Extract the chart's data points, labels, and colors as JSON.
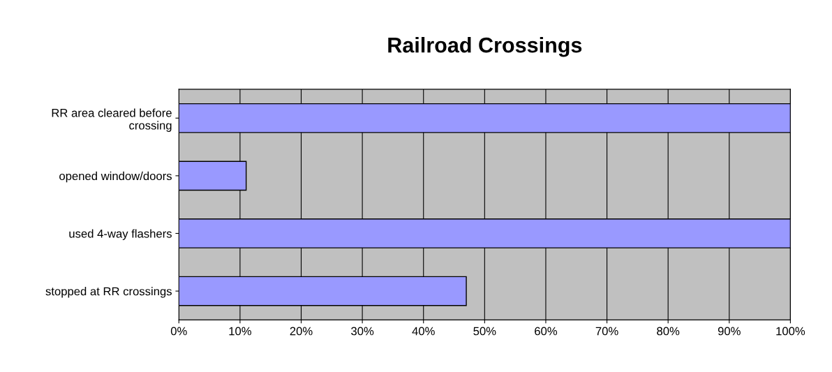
{
  "chart_data": {
    "type": "bar",
    "orientation": "horizontal",
    "title": "Railroad Crossings",
    "categories": [
      "RR area cleared before\ncrossing",
      "opened window/doors",
      "used 4-way flashers",
      "stopped at RR crossings"
    ],
    "series": [
      {
        "color": "#9999ff",
        "values": [
          100,
          11,
          100,
          47
        ]
      }
    ],
    "xlim": [
      0,
      100
    ],
    "xticks": [
      {
        "value": 0,
        "label": "0%"
      },
      {
        "value": 10,
        "label": "10%"
      },
      {
        "value": 20,
        "label": "20%"
      },
      {
        "value": 30,
        "label": "30%"
      },
      {
        "value": 40,
        "label": "40%"
      },
      {
        "value": 50,
        "label": "50%"
      },
      {
        "value": 60,
        "label": "60%"
      },
      {
        "value": 70,
        "label": "70%"
      },
      {
        "value": 80,
        "label": "80%"
      },
      {
        "value": 90,
        "label": "90%"
      },
      {
        "value": 100,
        "label": "100%"
      }
    ],
    "grid": "x",
    "legend": false
  }
}
